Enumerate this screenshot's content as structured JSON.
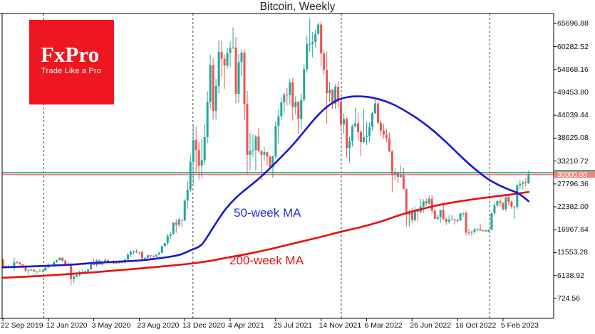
{
  "header": {
    "title": "Bitcoin, Weekly"
  },
  "logo": {
    "wordmark": "FxPro",
    "tagline": "Trade Like a Pro",
    "bg_color": "#ee1620"
  },
  "annotations": {
    "ma50_label": "50-week MA",
    "ma200_label": "200-week MA",
    "price_tag": "30000.00"
  },
  "colors": {
    "candle_up": "#26a69a",
    "candle_down": "#ef5350",
    "ma50": "#1717d2",
    "ma200": "#e60f0f",
    "level_line": "#46a29a",
    "price_line": "#f0837a",
    "price_tag_bg": "#f0837a",
    "year_gridline": "#404040",
    "border": "#000000",
    "background": "#ffffff"
  },
  "chart_data": {
    "type": "candlestick",
    "title": "Bitcoin, Weekly",
    "interval": "weekly",
    "start_date": "22 Sep 2019",
    "end_date": "9 Apr 2023",
    "grid": "vertical-dashed-year-lines-only",
    "legend_position": "inline-labels",
    "y_tick_labels": [
      "65696.88",
      "60282.52",
      "54868.16",
      "49453.80",
      "44039.44",
      "38625.08",
      "33210.72",
      "27796.36",
      "22382.00",
      "16967.64",
      "11553.28",
      "6138.92",
      "724.56"
    ],
    "y_tick_values": [
      65696.88,
      60282.52,
      54868.16,
      49453.8,
      44039.44,
      38625.08,
      33210.72,
      27796.36,
      22382.0,
      16967.64,
      11553.28,
      6138.92,
      724.56
    ],
    "y_tick_step": 5414.36,
    "x_tick_labels": [
      "22 Sep 2019",
      "12 Jan 2020",
      "3 May 2020",
      "23 Aug 2020",
      "13 Dec 2020",
      "4 Apr 2021",
      "25 Jul 2021",
      "14 Nov 2021",
      "6 Mar 2022",
      "26 Jun 2022",
      "16 Oct 2022",
      "5 Feb 2023"
    ],
    "x_tick_weeks": [
      0,
      16,
      32,
      48,
      64,
      80,
      96,
      112,
      128,
      144,
      160,
      176
    ],
    "year_gridline_weeks": [
      14.4,
      66.9,
      119.1,
      171.3
    ],
    "price_line": 30000.0,
    "level_line": 30450,
    "candles_ohlc": [
      [
        10020,
        10050,
        7800,
        8050
      ],
      [
        8050,
        8520,
        7700,
        8150
      ],
      [
        8150,
        8700,
        7800,
        8300
      ],
      [
        8300,
        8400,
        7850,
        7950
      ],
      [
        7950,
        10350,
        7300,
        9250
      ],
      [
        9250,
        9600,
        8950,
        9200
      ],
      [
        9200,
        9400,
        8550,
        8800
      ],
      [
        8800,
        8850,
        8300,
        8500
      ],
      [
        8500,
        8550,
        6900,
        7300
      ],
      [
        7300,
        7700,
        6500,
        7400
      ],
      [
        7400,
        7800,
        7200,
        7500
      ],
      [
        7500,
        7600,
        7000,
        7100
      ],
      [
        7100,
        7200,
        6450,
        7150
      ],
      [
        7150,
        7600,
        7050,
        7300
      ],
      [
        7300,
        7500,
        6900,
        7350
      ],
      [
        7350,
        8200,
        7300,
        8020
      ],
      [
        8020,
        9000,
        8000,
        8700
      ],
      [
        8700,
        8750,
        8250,
        8600
      ],
      [
        8600,
        9450,
        8450,
        9350
      ],
      [
        9350,
        9850,
        9100,
        9800
      ],
      [
        9800,
        10500,
        9750,
        10350
      ],
      [
        10350,
        10400,
        9450,
        9650
      ],
      [
        9650,
        9980,
        8550,
        8600
      ],
      [
        8600,
        9200,
        8400,
        8900
      ],
      [
        8900,
        9170,
        3850,
        5300
      ],
      [
        5300,
        6900,
        4450,
        5850
      ],
      [
        5850,
        6980,
        5750,
        6250
      ],
      [
        6250,
        7300,
        5870,
        6750
      ],
      [
        6750,
        7470,
        6600,
        6900
      ],
      [
        6900,
        7300,
        6500,
        7120
      ],
      [
        7120,
        7750,
        6800,
        7550
      ],
      [
        7550,
        9450,
        7500,
        8800
      ],
      [
        8800,
        10050,
        8550,
        8600
      ],
      [
        8600,
        9950,
        8200,
        9700
      ],
      [
        9700,
        9950,
        8700,
        8720
      ],
      [
        8720,
        9600,
        8650,
        9450
      ],
      [
        9450,
        10400,
        9300,
        9750
      ],
      [
        9750,
        9990,
        8900,
        9350
      ],
      [
        9350,
        9590,
        8900,
        9300
      ],
      [
        9300,
        9750,
        8830,
        9010
      ],
      [
        9010,
        9270,
        8810,
        9070
      ],
      [
        9070,
        9480,
        9000,
        9300
      ],
      [
        9300,
        9400,
        9050,
        9170
      ],
      [
        9170,
        10100,
        9100,
        9920
      ],
      [
        9920,
        11450,
        9850,
        11050
      ],
      [
        11050,
        12150,
        10550,
        11700
      ],
      [
        11700,
        12050,
        11150,
        11850
      ],
      [
        11850,
        12400,
        11400,
        11650
      ],
      [
        11650,
        11800,
        11100,
        11700
      ],
      [
        11700,
        12080,
        9950,
        10250
      ],
      [
        10250,
        10580,
        9850,
        10330
      ],
      [
        10330,
        11090,
        10210,
        10920
      ],
      [
        10920,
        11000,
        10150,
        10700
      ],
      [
        10700,
        10950,
        10380,
        10550
      ],
      [
        10550,
        11100,
        10500,
        11060
      ],
      [
        11060,
        11720,
        11050,
        11500
      ],
      [
        11500,
        13200,
        11400,
        13100
      ],
      [
        13100,
        13850,
        12880,
        13800
      ],
      [
        13800,
        15960,
        13250,
        15500
      ],
      [
        15500,
        16480,
        14800,
        15950
      ],
      [
        15950,
        18800,
        15800,
        18650
      ],
      [
        18650,
        19450,
        16250,
        18150
      ],
      [
        18150,
        19900,
        17600,
        19350
      ],
      [
        19350,
        19420,
        17650,
        19150
      ],
      [
        19150,
        24200,
        19050,
        23850
      ],
      [
        23850,
        28400,
        21900,
        26450
      ],
      [
        26450,
        34800,
        25850,
        33000
      ],
      [
        33000,
        41950,
        27700,
        38150
      ],
      [
        38150,
        41350,
        30400,
        35800
      ],
      [
        35800,
        37850,
        28850,
        32100
      ],
      [
        32100,
        38600,
        29250,
        33400
      ],
      [
        33400,
        42000,
        32300,
        38850
      ],
      [
        38850,
        49700,
        37400,
        47200
      ],
      [
        47200,
        58350,
        45600,
        55900
      ],
      [
        55900,
        57550,
        43000,
        45100
      ],
      [
        45100,
        52650,
        43000,
        50950
      ],
      [
        50950,
        61800,
        49300,
        59000
      ],
      [
        59000,
        61700,
        53200,
        57400
      ],
      [
        57400,
        58400,
        50300,
        55800
      ],
      [
        55800,
        59900,
        55000,
        58750
      ],
      [
        58750,
        61500,
        55400,
        59950
      ],
      [
        59950,
        64850,
        59750,
        60050
      ],
      [
        60050,
        62570,
        46900,
        49100
      ],
      [
        49100,
        58500,
        47000,
        56600
      ],
      [
        56600,
        59600,
        53300,
        58850
      ],
      [
        58850,
        59500,
        42900,
        46700
      ],
      [
        46700,
        49800,
        30000,
        34700
      ],
      [
        34700,
        39900,
        31100,
        35650
      ],
      [
        35650,
        39500,
        34150,
        35800
      ],
      [
        35800,
        39380,
        31000,
        39000
      ],
      [
        39000,
        41000,
        35200,
        35600
      ],
      [
        35600,
        35750,
        28800,
        34700
      ],
      [
        34700,
        36600,
        33300,
        35300
      ],
      [
        35300,
        35500,
        32100,
        34250
      ],
      [
        34250,
        34650,
        31550,
        31800
      ],
      [
        31800,
        34500,
        29300,
        34290
      ],
      [
        34290,
        42600,
        33850,
        41500
      ],
      [
        41500,
        45350,
        37350,
        43800
      ],
      [
        43800,
        48150,
        42800,
        47100
      ],
      [
        47100,
        49400,
        44400,
        48900
      ],
      [
        48900,
        50500,
        46350,
        48800
      ],
      [
        48800,
        52700,
        46500,
        51800
      ],
      [
        51800,
        52900,
        42800,
        46000
      ],
      [
        46000,
        48500,
        44300,
        47250
      ],
      [
        47250,
        47350,
        39600,
        43200
      ],
      [
        43200,
        49200,
        40750,
        47700
      ],
      [
        47700,
        56100,
        47100,
        54950
      ],
      [
        54950,
        62900,
        54100,
        60850
      ],
      [
        60850,
        66990,
        58950,
        60900
      ],
      [
        60900,
        63700,
        57700,
        61400
      ],
      [
        61400,
        64270,
        60000,
        63300
      ],
      [
        63300,
        66000,
        63000,
        65500
      ],
      [
        65500,
        66250,
        55600,
        58650
      ],
      [
        58650,
        59450,
        53500,
        54750
      ],
      [
        54750,
        59100,
        42000,
        49250
      ],
      [
        49250,
        51950,
        47100,
        50100
      ],
      [
        50100,
        50200,
        45560,
        46700
      ],
      [
        46700,
        51400,
        45600,
        50800
      ],
      [
        50800,
        52100,
        45900,
        47300
      ],
      [
        47300,
        47570,
        40500,
        41850
      ],
      [
        41850,
        44450,
        39600,
        43100
      ],
      [
        43100,
        43500,
        34000,
        36250
      ],
      [
        36250,
        38950,
        32950,
        37920
      ],
      [
        37920,
        41800,
        36650,
        41500
      ],
      [
        41500,
        45850,
        41100,
        42100
      ],
      [
        42100,
        44800,
        38050,
        40100
      ],
      [
        40100,
        40450,
        34300,
        37700
      ],
      [
        37700,
        45400,
        37450,
        38850
      ],
      [
        38850,
        42550,
        37000,
        39100
      ],
      [
        39100,
        42300,
        37600,
        41250
      ],
      [
        41250,
        44800,
        40500,
        44550
      ],
      [
        44550,
        48200,
        44200,
        46850
      ],
      [
        46850,
        47450,
        41900,
        42250
      ],
      [
        42250,
        42800,
        39200,
        40400
      ],
      [
        40400,
        42000,
        38550,
        39450
      ],
      [
        39450,
        40800,
        37700,
        38600
      ],
      [
        38600,
        40000,
        35250,
        35500
      ],
      [
        35500,
        35800,
        25800,
        30050
      ],
      [
        30050,
        31450,
        28650,
        30300
      ],
      [
        30300,
        30700,
        28000,
        29450
      ],
      [
        29450,
        32200,
        29250,
        29900
      ],
      [
        29900,
        31700,
        26700,
        26550
      ],
      [
        26550,
        26800,
        17600,
        20550
      ],
      [
        20550,
        21800,
        17750,
        21000
      ],
      [
        21000,
        22150,
        18600,
        19250
      ],
      [
        19250,
        22450,
        18950,
        21600
      ],
      [
        21600,
        21600,
        18900,
        21200
      ],
      [
        21200,
        24280,
        20750,
        22450
      ],
      [
        22450,
        24200,
        20950,
        23650
      ],
      [
        23650,
        24450,
        22600,
        23180
      ],
      [
        23180,
        25050,
        22850,
        24300
      ],
      [
        24300,
        25200,
        20800,
        21500
      ],
      [
        21500,
        21800,
        19500,
        19550
      ],
      [
        19550,
        20550,
        19300,
        19950
      ],
      [
        19950,
        21650,
        18650,
        21650
      ],
      [
        21650,
        22800,
        19300,
        19500
      ],
      [
        19500,
        19950,
        18100,
        18900
      ],
      [
        18900,
        20380,
        18450,
        19300
      ],
      [
        19300,
        20475,
        19150,
        19420
      ],
      [
        19420,
        19530,
        18190,
        19175
      ],
      [
        19175,
        19700,
        18650,
        19200
      ],
      [
        19200,
        21000,
        19060,
        20800
      ],
      [
        20800,
        21050,
        20050,
        20900
      ],
      [
        20900,
        21350,
        15600,
        16300
      ],
      [
        16300,
        17130,
        15750,
        16270
      ],
      [
        16270,
        16700,
        15480,
        16460
      ],
      [
        16460,
        17300,
        16000,
        17100
      ],
      [
        17100,
        17400,
        16700,
        17130
      ],
      [
        17130,
        18350,
        16900,
        16750
      ],
      [
        16750,
        16950,
        16400,
        16830
      ],
      [
        16830,
        16950,
        16480,
        16550
      ],
      [
        16550,
        17050,
        16500,
        16950
      ],
      [
        16950,
        21050,
        16930,
        20880
      ],
      [
        20880,
        23350,
        20400,
        22700
      ],
      [
        22700,
        23950,
        22300,
        23750
      ],
      [
        23750,
        24250,
        22500,
        23330
      ],
      [
        23330,
        23450,
        21450,
        21860
      ],
      [
        21860,
        25250,
        21350,
        24630
      ],
      [
        24630,
        25300,
        22750,
        23550
      ],
      [
        23550,
        23900,
        21950,
        22350
      ],
      [
        22350,
        22650,
        19550,
        22400
      ],
      [
        22400,
        27750,
        21900,
        27450
      ],
      [
        27450,
        28750,
        26600,
        27850
      ],
      [
        27850,
        28600,
        26500,
        28200
      ],
      [
        28200,
        29180,
        27250,
        27950
      ],
      [
        27950,
        31000,
        27800,
        30000
      ]
    ],
    "series": [
      {
        "name": "50-week MA",
        "color": "#1717d2",
        "points_week_price": [
          [
            0,
            8100
          ],
          [
            8,
            8250
          ],
          [
            16,
            8450
          ],
          [
            24,
            8700
          ],
          [
            32,
            9100
          ],
          [
            40,
            9400
          ],
          [
            48,
            9700
          ],
          [
            56,
            10300
          ],
          [
            62,
            11000
          ],
          [
            66,
            12100
          ],
          [
            70,
            13500
          ],
          [
            74,
            17500
          ],
          [
            78,
            21500
          ],
          [
            82,
            24500
          ],
          [
            86,
            26800
          ],
          [
            90,
            29000
          ],
          [
            94,
            31500
          ],
          [
            98,
            34200
          ],
          [
            102,
            37000
          ],
          [
            106,
            40200
          ],
          [
            110,
            43400
          ],
          [
            114,
            46000
          ],
          [
            118,
            47700
          ],
          [
            122,
            48400
          ],
          [
            126,
            48500
          ],
          [
            130,
            48200
          ],
          [
            134,
            47500
          ],
          [
            138,
            46400
          ],
          [
            142,
            44900
          ],
          [
            146,
            43200
          ],
          [
            150,
            41200
          ],
          [
            154,
            38900
          ],
          [
            158,
            36400
          ],
          [
            162,
            33800
          ],
          [
            166,
            31400
          ],
          [
            170,
            29300
          ],
          [
            174,
            27700
          ],
          [
            178,
            26500
          ],
          [
            181,
            25700
          ],
          [
            183,
            24800
          ],
          [
            185,
            23700
          ]
        ]
      },
      {
        "name": "200-week MA",
        "color": "#e60f0f",
        "points_week_price": [
          [
            0,
            5600
          ],
          [
            16,
            6150
          ],
          [
            32,
            6900
          ],
          [
            48,
            7800
          ],
          [
            64,
            8800
          ],
          [
            72,
            9500
          ],
          [
            80,
            10500
          ],
          [
            88,
            11500
          ],
          [
            96,
            12700
          ],
          [
            104,
            14000
          ],
          [
            112,
            15300
          ],
          [
            119,
            16500
          ],
          [
            126,
            17600
          ],
          [
            133,
            18900
          ],
          [
            140,
            20500
          ],
          [
            147,
            21800
          ],
          [
            154,
            22900
          ],
          [
            161,
            23700
          ],
          [
            168,
            24400
          ],
          [
            174,
            24900
          ],
          [
            180,
            25400
          ],
          [
            185,
            25900
          ]
        ]
      }
    ]
  }
}
